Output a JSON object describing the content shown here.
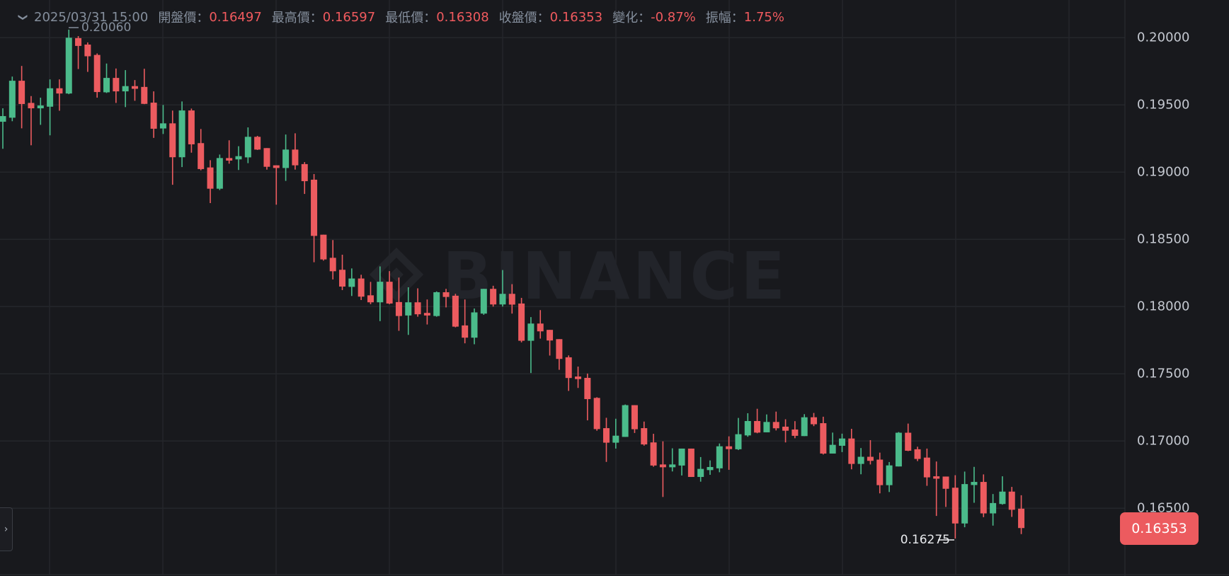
{
  "header": {
    "collapse_icon": "chevron-down-icon",
    "datetime": "2025/03/31 15:00",
    "open_label": "開盤價：",
    "open_value": "0.16497",
    "high_label": "最高價：",
    "high_value": "0.16597",
    "low_label": "最低價：",
    "low_value": "0.16308",
    "close_label": "收盤價：",
    "close_value": "0.16353",
    "change_label": "變化：",
    "change_value": "-0.87%",
    "amplitude_label": "振幅：",
    "amplitude_value": "1.75%"
  },
  "side_toggle_icon": "chevron-right-icon",
  "watermark": "BINANCE",
  "colors": {
    "up": "#4bbb8b",
    "down": "#ec5b5f",
    "background": "#18191d",
    "grid": "#24262b",
    "text": "#848e9c"
  },
  "chart_data": {
    "type": "candlestick",
    "ylim": [
      0.16275,
      0.2006
    ],
    "grid": true,
    "y_ticks": [
      "0.20000",
      "0.19500",
      "0.19000",
      "0.18500",
      "0.18000",
      "0.17500",
      "0.17000",
      "0.16500"
    ],
    "y_tick_values": [
      0.2,
      0.195,
      0.19,
      0.185,
      0.18,
      0.175,
      0.17,
      0.165
    ],
    "current_price": "0.16353",
    "max_marker": "0.20060",
    "min_marker": "0.16275",
    "ohlc_order": [
      "open",
      "high",
      "low",
      "close"
    ],
    "candles": [
      [
        0.19375,
        0.19475,
        0.19174,
        0.19417
      ],
      [
        0.19405,
        0.19711,
        0.19379,
        0.1968
      ],
      [
        0.1968,
        0.1979,
        0.19326,
        0.19507
      ],
      [
        0.19515,
        0.19566,
        0.192,
        0.19475
      ],
      [
        0.19475,
        0.19554,
        0.19352,
        0.19496
      ],
      [
        0.19487,
        0.1969,
        0.19274,
        0.19624
      ],
      [
        0.19624,
        0.1969,
        0.19457,
        0.19585
      ],
      [
        0.19585,
        0.2006,
        0.1958,
        0.2
      ],
      [
        0.19997,
        0.20012,
        0.19767,
        0.19939
      ],
      [
        0.19949,
        0.19965,
        0.19746,
        0.19862
      ],
      [
        0.19872,
        0.19883,
        0.19554,
        0.19596
      ],
      [
        0.19594,
        0.19808,
        0.19589,
        0.19701
      ],
      [
        0.19701,
        0.19771,
        0.19515,
        0.19601
      ],
      [
        0.19601,
        0.19759,
        0.19484,
        0.1964
      ],
      [
        0.1964,
        0.19685,
        0.19531,
        0.1962
      ],
      [
        0.19634,
        0.19769,
        0.19506,
        0.19508
      ],
      [
        0.19517,
        0.19601,
        0.19255,
        0.19323
      ],
      [
        0.19325,
        0.195,
        0.19284,
        0.19363
      ],
      [
        0.19363,
        0.19458,
        0.18906,
        0.19111
      ],
      [
        0.19111,
        0.19526,
        0.19038,
        0.19459
      ],
      [
        0.19459,
        0.19473,
        0.19145,
        0.19207
      ],
      [
        0.19216,
        0.19321,
        0.19014,
        0.19023
      ],
      [
        0.19035,
        0.19089,
        0.1877,
        0.18877
      ],
      [
        0.18877,
        0.19131,
        0.18867,
        0.19105
      ],
      [
        0.19105,
        0.19237,
        0.19063,
        0.19086
      ],
      [
        0.19095,
        0.19193,
        0.19016,
        0.19119
      ],
      [
        0.1911,
        0.19333,
        0.19067,
        0.19263
      ],
      [
        0.19263,
        0.1927,
        0.19165,
        0.19168
      ],
      [
        0.19179,
        0.19179,
        0.19019,
        0.1904
      ],
      [
        0.19051,
        0.19051,
        0.18758,
        0.19031
      ],
      [
        0.19031,
        0.1928,
        0.18935,
        0.19168
      ],
      [
        0.19168,
        0.19289,
        0.19019,
        0.19051
      ],
      [
        0.1906,
        0.19075,
        0.18838,
        0.18933
      ],
      [
        0.18944,
        0.18986,
        0.1833,
        0.18526
      ],
      [
        0.18535,
        0.18535,
        0.18342,
        0.18351
      ],
      [
        0.18363,
        0.18495,
        0.18202,
        0.18263
      ],
      [
        0.18274,
        0.18386,
        0.18123,
        0.18149
      ],
      [
        0.18147,
        0.18284,
        0.18079,
        0.18209
      ],
      [
        0.18209,
        0.18237,
        0.18049,
        0.18074
      ],
      [
        0.18084,
        0.18184,
        0.18018,
        0.18032
      ],
      [
        0.18032,
        0.18299,
        0.17892,
        0.18185
      ],
      [
        0.18185,
        0.18264,
        0.18018,
        0.18023
      ],
      [
        0.18034,
        0.18216,
        0.1782,
        0.1793
      ],
      [
        0.17934,
        0.18144,
        0.1779,
        0.18032
      ],
      [
        0.18032,
        0.18136,
        0.17925,
        0.17943
      ],
      [
        0.17953,
        0.18053,
        0.17867,
        0.17934
      ],
      [
        0.1793,
        0.18113,
        0.17925,
        0.18107
      ],
      [
        0.18107,
        0.18132,
        0.17994,
        0.18072
      ],
      [
        0.18081,
        0.18095,
        0.17846,
        0.17851
      ],
      [
        0.1786,
        0.18053,
        0.17727,
        0.17769
      ],
      [
        0.17769,
        0.17986,
        0.1772,
        0.17957
      ],
      [
        0.17948,
        0.18132,
        0.17939,
        0.18132
      ],
      [
        0.18132,
        0.18155,
        0.18,
        0.18016
      ],
      [
        0.18016,
        0.18272,
        0.18,
        0.18095
      ],
      [
        0.18095,
        0.18167,
        0.17948,
        0.18015
      ],
      [
        0.18023,
        0.18065,
        0.17734,
        0.17746
      ],
      [
        0.17746,
        0.17922,
        0.17506,
        0.17874
      ],
      [
        0.17874,
        0.17974,
        0.17762,
        0.17816
      ],
      [
        0.17827,
        0.17827,
        0.17636,
        0.17748
      ],
      [
        0.17758,
        0.17758,
        0.1753,
        0.17611
      ],
      [
        0.17623,
        0.17637,
        0.17373,
        0.17469
      ],
      [
        0.1748,
        0.17554,
        0.17395,
        0.17461
      ],
      [
        0.1747,
        0.17502,
        0.17154,
        0.17312
      ],
      [
        0.17321,
        0.17326,
        0.17077,
        0.17089
      ],
      [
        0.17096,
        0.17173,
        0.16845,
        0.16988
      ],
      [
        0.16988,
        0.17166,
        0.16944,
        0.1704
      ],
      [
        0.17031,
        0.17272,
        0.17031,
        0.17267
      ],
      [
        0.17267,
        0.17267,
        0.1706,
        0.17088
      ],
      [
        0.17096,
        0.17145,
        0.16966,
        0.16975
      ],
      [
        0.1699,
        0.17054,
        0.16809,
        0.16818
      ],
      [
        0.16826,
        0.16998,
        0.16584,
        0.16805
      ],
      [
        0.16805,
        0.16946,
        0.16774,
        0.16826
      ],
      [
        0.16818,
        0.16944,
        0.16744,
        0.16944
      ],
      [
        0.16944,
        0.16944,
        0.16733,
        0.16733
      ],
      [
        0.16733,
        0.16881,
        0.16698,
        0.16793
      ],
      [
        0.16784,
        0.16856,
        0.16749,
        0.16807
      ],
      [
        0.16797,
        0.16982,
        0.16768,
        0.16961
      ],
      [
        0.16961,
        0.17035,
        0.16786,
        0.1694
      ],
      [
        0.16939,
        0.17172,
        0.16933,
        0.17051
      ],
      [
        0.17042,
        0.17207,
        0.17032,
        0.17149
      ],
      [
        0.17149,
        0.1724,
        0.17058,
        0.17063
      ],
      [
        0.17065,
        0.17198,
        0.17065,
        0.17142
      ],
      [
        0.17142,
        0.17219,
        0.17079,
        0.17095
      ],
      [
        0.17107,
        0.17162,
        0.1699,
        0.17077
      ],
      [
        0.17086,
        0.17148,
        0.17021,
        0.17039
      ],
      [
        0.17037,
        0.172,
        0.17037,
        0.17177
      ],
      [
        0.17177,
        0.17209,
        0.17111,
        0.17125
      ],
      [
        0.17133,
        0.17181,
        0.169,
        0.16907
      ],
      [
        0.16907,
        0.17063,
        0.16907,
        0.16972
      ],
      [
        0.16965,
        0.17055,
        0.16918,
        0.17019
      ],
      [
        0.17019,
        0.17091,
        0.1679,
        0.1683
      ],
      [
        0.1683,
        0.16948,
        0.16753,
        0.16883
      ],
      [
        0.16883,
        0.17007,
        0.16826,
        0.16853
      ],
      [
        0.16862,
        0.16914,
        0.16611,
        0.16672
      ],
      [
        0.16672,
        0.16844,
        0.16621,
        0.16819
      ],
      [
        0.16811,
        0.17067,
        0.16811,
        0.17062
      ],
      [
        0.17062,
        0.1713,
        0.16925,
        0.16928
      ],
      [
        0.16939,
        0.16958,
        0.16851,
        0.16867
      ],
      [
        0.16877,
        0.16944,
        0.16667,
        0.1673
      ],
      [
        0.16738,
        0.16848,
        0.16443,
        0.1672
      ],
      [
        0.16736,
        0.16736,
        0.1651,
        0.16645
      ],
      [
        0.16653,
        0.16746,
        0.16275,
        0.16387
      ],
      [
        0.16387,
        0.16773,
        0.16359,
        0.1668
      ],
      [
        0.16673,
        0.16808,
        0.16541,
        0.16696
      ],
      [
        0.16696,
        0.16752,
        0.16434,
        0.16462
      ],
      [
        0.16462,
        0.16606,
        0.16371,
        0.16539
      ],
      [
        0.16532,
        0.16738,
        0.16527,
        0.16624
      ],
      [
        0.16624,
        0.16659,
        0.16436,
        0.16489
      ],
      [
        0.16497,
        0.16597,
        0.16308,
        0.16353
      ]
    ]
  }
}
